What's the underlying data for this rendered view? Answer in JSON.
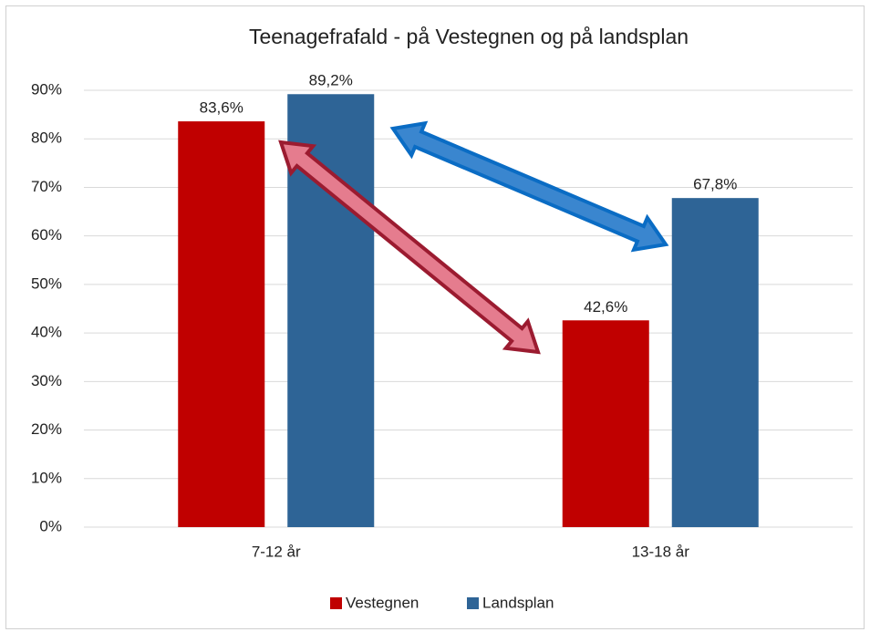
{
  "chart_data": {
    "type": "bar",
    "title": "Teenagefrafald - på Vestegnen og på landsplan",
    "categories": [
      "7-12 år",
      "13-18 år"
    ],
    "series": [
      {
        "name": "Vestegnen",
        "color": "#c00000",
        "values": [
          83.6,
          42.6
        ],
        "value_labels": [
          "83,6%",
          "42,6%"
        ]
      },
      {
        "name": "Landsplan",
        "color": "#2e6496",
        "values": [
          89.2,
          67.8
        ],
        "value_labels": [
          "89,2%",
          "67,8%"
        ]
      }
    ],
    "ylim": [
      0,
      90
    ],
    "yticks": [
      {
        "value": 0,
        "label": "0%"
      },
      {
        "value": 10,
        "label": "10%"
      },
      {
        "value": 20,
        "label": "20%"
      },
      {
        "value": 30,
        "label": "30%"
      },
      {
        "value": 40,
        "label": "40%"
      },
      {
        "value": 50,
        "label": "50%"
      },
      {
        "value": 60,
        "label": "60%"
      },
      {
        "value": 70,
        "label": "70%"
      },
      {
        "value": 80,
        "label": "80%"
      },
      {
        "value": 90,
        "label": "90%"
      }
    ],
    "grid": true,
    "legend": "bottom"
  }
}
